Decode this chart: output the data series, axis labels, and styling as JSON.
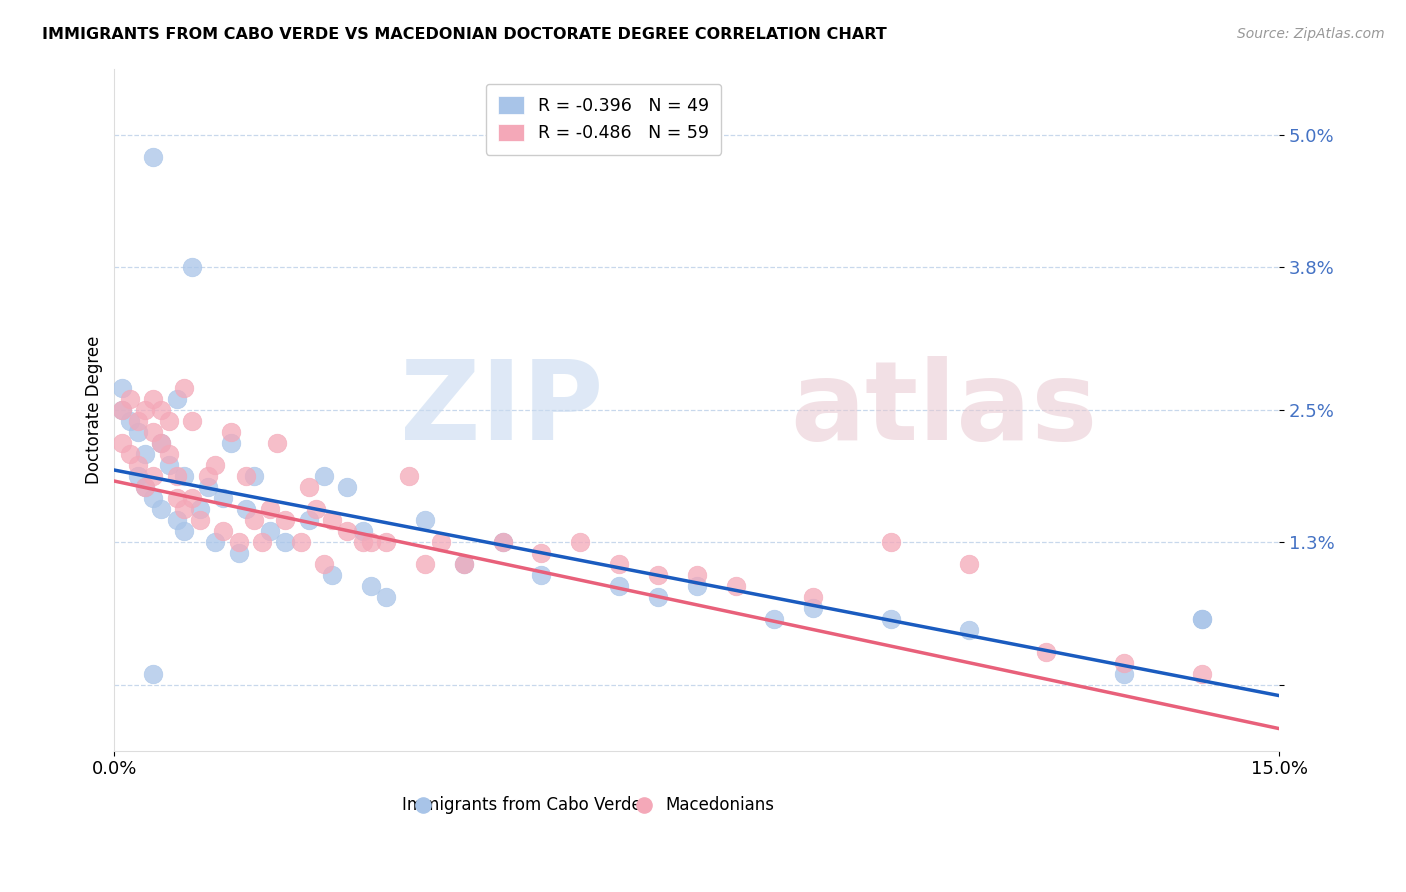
{
  "title": "IMMIGRANTS FROM CABO VERDE VS MACEDONIAN DOCTORATE DEGREE CORRELATION CHART",
  "source": "Source: ZipAtlas.com",
  "ylabel": "Doctorate Degree",
  "ytick_vals": [
    0.0,
    0.013,
    0.025,
    0.038,
    0.05
  ],
  "ytick_labels": [
    "",
    "1.3%",
    "2.5%",
    "3.8%",
    "5.0%"
  ],
  "xmin": 0.0,
  "xmax": 0.15,
  "ymin": -0.006,
  "ymax": 0.056,
  "legend_entry1": "R = -0.396   N = 49",
  "legend_entry2": "R = -0.486   N = 59",
  "legend_label1": "Immigrants from Cabo Verde",
  "legend_label2": "Macedonians",
  "color_blue": "#a8c4e8",
  "color_pink": "#f4a8b8",
  "trendline_blue": "#1a5bbf",
  "trendline_pink": "#e8607a",
  "grid_color": "#c8d8ec",
  "spine_color": "#dddddd",
  "ytick_color": "#4472c4",
  "cabo_verde_x": [
    0.001,
    0.001,
    0.002,
    0.003,
    0.003,
    0.004,
    0.004,
    0.005,
    0.005,
    0.006,
    0.006,
    0.007,
    0.008,
    0.008,
    0.009,
    0.009,
    0.01,
    0.011,
    0.012,
    0.013,
    0.014,
    0.015,
    0.016,
    0.017,
    0.018,
    0.02,
    0.022,
    0.025,
    0.027,
    0.028,
    0.03,
    0.032,
    0.033,
    0.035,
    0.04,
    0.045,
    0.05,
    0.055,
    0.065,
    0.07,
    0.075,
    0.085,
    0.09,
    0.1,
    0.11,
    0.13,
    0.14,
    0.14,
    0.005
  ],
  "cabo_verde_y": [
    0.027,
    0.025,
    0.024,
    0.023,
    0.019,
    0.021,
    0.018,
    0.048,
    0.017,
    0.022,
    0.016,
    0.02,
    0.015,
    0.026,
    0.019,
    0.014,
    0.038,
    0.016,
    0.018,
    0.013,
    0.017,
    0.022,
    0.012,
    0.016,
    0.019,
    0.014,
    0.013,
    0.015,
    0.019,
    0.01,
    0.018,
    0.014,
    0.009,
    0.008,
    0.015,
    0.011,
    0.013,
    0.01,
    0.009,
    0.008,
    0.009,
    0.006,
    0.007,
    0.006,
    0.005,
    0.001,
    0.006,
    0.006,
    0.001
  ],
  "macedonian_x": [
    0.001,
    0.001,
    0.002,
    0.002,
    0.003,
    0.003,
    0.004,
    0.004,
    0.005,
    0.005,
    0.005,
    0.006,
    0.006,
    0.007,
    0.007,
    0.008,
    0.008,
    0.009,
    0.009,
    0.01,
    0.01,
    0.011,
    0.012,
    0.013,
    0.014,
    0.015,
    0.016,
    0.017,
    0.018,
    0.019,
    0.02,
    0.021,
    0.022,
    0.024,
    0.025,
    0.026,
    0.027,
    0.028,
    0.03,
    0.032,
    0.033,
    0.035,
    0.038,
    0.04,
    0.042,
    0.045,
    0.05,
    0.055,
    0.06,
    0.065,
    0.07,
    0.075,
    0.08,
    0.09,
    0.1,
    0.11,
    0.12,
    0.13,
    0.14
  ],
  "macedonian_y": [
    0.025,
    0.022,
    0.026,
    0.021,
    0.024,
    0.02,
    0.025,
    0.018,
    0.023,
    0.026,
    0.019,
    0.022,
    0.025,
    0.021,
    0.024,
    0.019,
    0.017,
    0.027,
    0.016,
    0.024,
    0.017,
    0.015,
    0.019,
    0.02,
    0.014,
    0.023,
    0.013,
    0.019,
    0.015,
    0.013,
    0.016,
    0.022,
    0.015,
    0.013,
    0.018,
    0.016,
    0.011,
    0.015,
    0.014,
    0.013,
    0.013,
    0.013,
    0.019,
    0.011,
    0.013,
    0.011,
    0.013,
    0.012,
    0.013,
    0.011,
    0.01,
    0.01,
    0.009,
    0.008,
    0.013,
    0.011,
    0.003,
    0.002,
    0.001
  ],
  "cv_trend_x0": 0.0,
  "cv_trend_y0": 0.0195,
  "cv_trend_x1": 0.15,
  "cv_trend_y1": -0.001,
  "mac_trend_x0": 0.0,
  "mac_trend_y0": 0.0185,
  "mac_trend_x1": 0.15,
  "mac_trend_y1": -0.004
}
